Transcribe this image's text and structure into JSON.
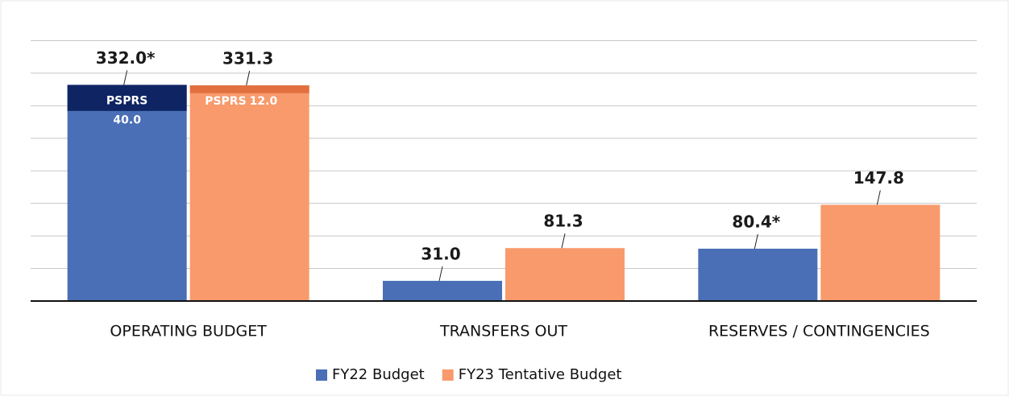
{
  "chart_data": {
    "type": "bar",
    "categories": [
      "OPERATING BUDGET",
      "TRANSFERS OUT",
      "RESERVES / CONTINGENCIES"
    ],
    "series": [
      {
        "name": "FY22 Budget",
        "color": "#4a6fb6",
        "values": [
          332.0,
          31.0,
          80.4
        ],
        "value_labels": [
          "332.0*",
          "31.0",
          "80.4*"
        ],
        "segments": {
          "label": "PSPRS",
          "values": [
            40.0,
            null,
            null
          ],
          "value_labels": [
            "40.0",
            null,
            null
          ],
          "color": "#0f2462"
        }
      },
      {
        "name": "FY23 Tentative Budget",
        "color": "#f89a6b",
        "values": [
          331.3,
          81.3,
          147.8
        ],
        "value_labels": [
          "331.3",
          "81.3",
          "147.8"
        ],
        "segments": {
          "label": "PSPRS",
          "values": [
            12.0,
            null,
            null
          ],
          "value_labels": [
            "12.0",
            null,
            null
          ],
          "color": "#e2703f"
        }
      }
    ],
    "ylim": [
      0,
      450
    ],
    "grid_values": [
      50,
      100,
      150,
      200,
      250,
      300,
      350,
      400
    ],
    "grid": true,
    "legend": "bottom"
  }
}
